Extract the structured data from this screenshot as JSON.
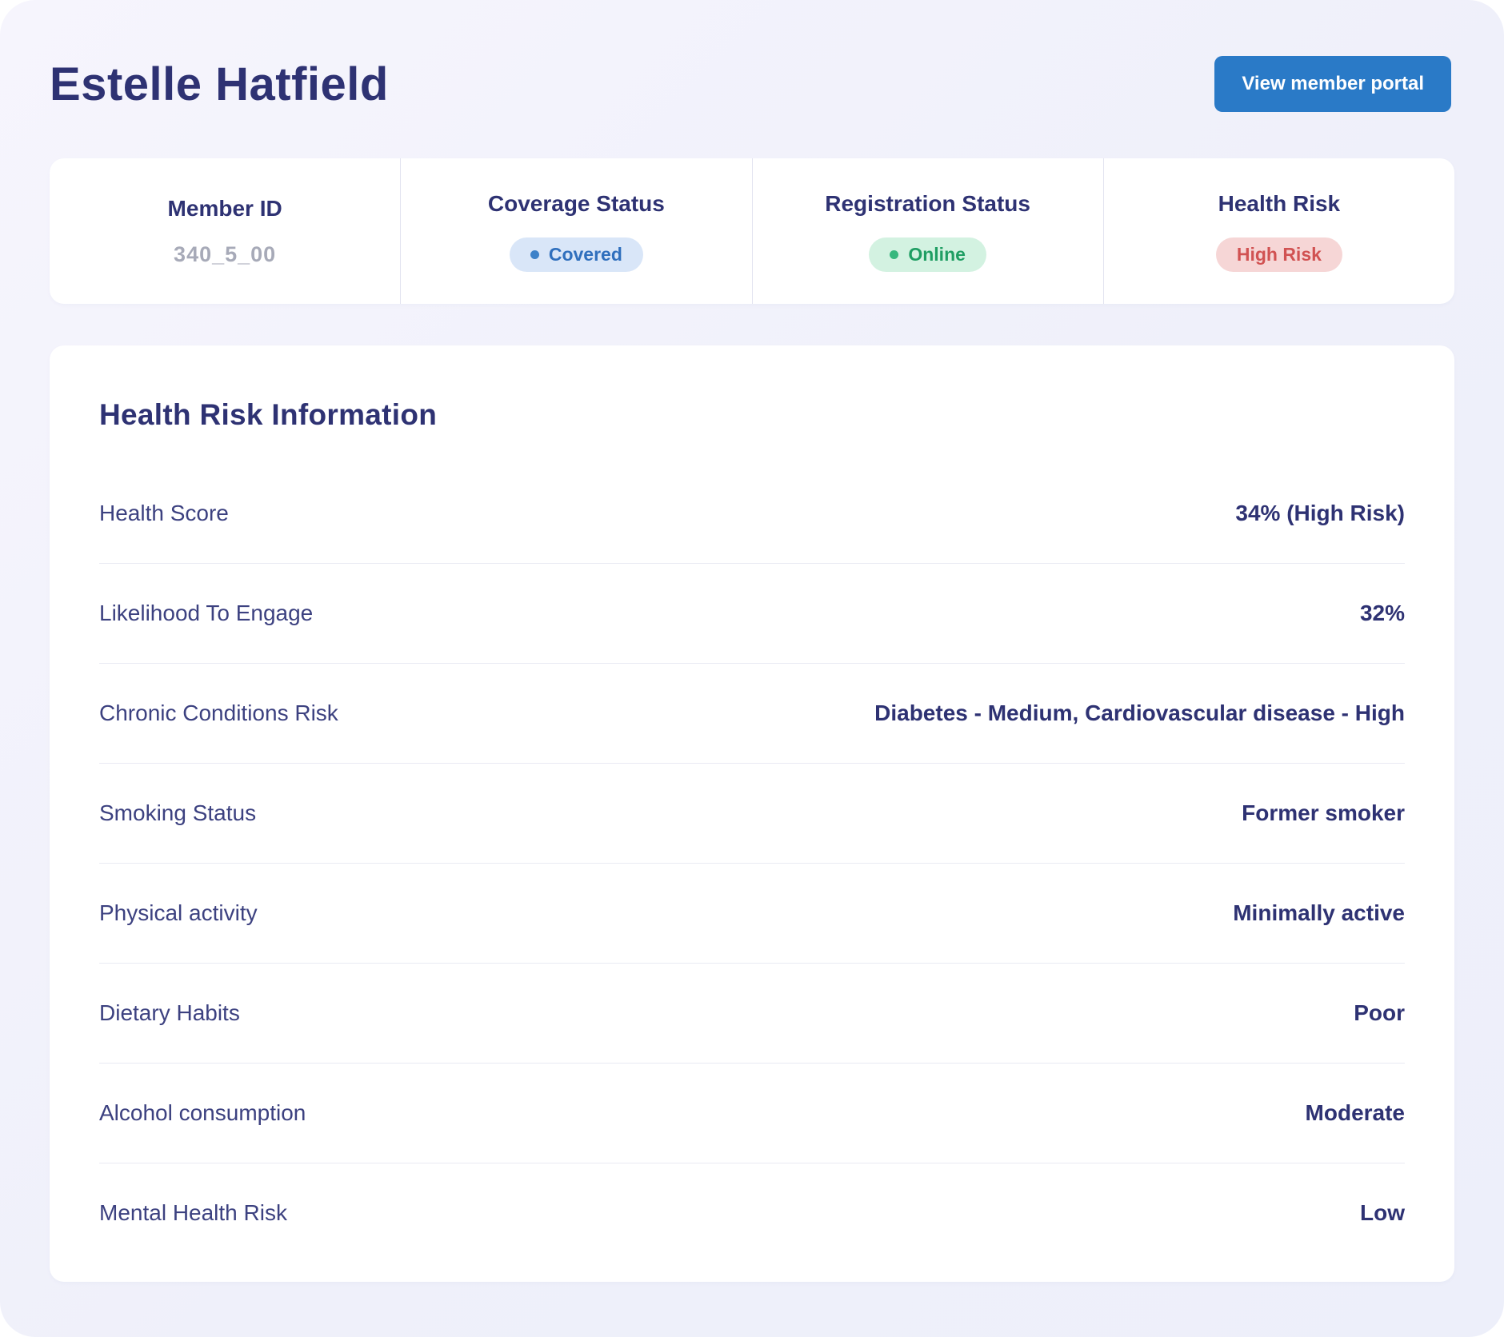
{
  "header": {
    "title": "Estelle Hatfield",
    "portal_button_label": "View member portal"
  },
  "stats": {
    "member_id": {
      "label": "Member ID",
      "value": "340_5_00"
    },
    "coverage": {
      "label": "Coverage Status",
      "badge": "Covered"
    },
    "registration": {
      "label": "Registration Status",
      "badge": "Online"
    },
    "health_risk": {
      "label": "Health Risk",
      "badge": "High Risk"
    }
  },
  "info": {
    "title": "Health Risk Information",
    "rows": [
      {
        "label": "Health Score",
        "value": "34% (High Risk)"
      },
      {
        "label": "Likelihood To Engage",
        "value": "32%"
      },
      {
        "label": "Chronic Conditions Risk",
        "value": "Diabetes - Medium, Cardiovascular disease - High"
      },
      {
        "label": "Smoking Status",
        "value": "Former smoker"
      },
      {
        "label": "Physical activity",
        "value": "Minimally active"
      },
      {
        "label": "Dietary Habits",
        "value": "Poor"
      },
      {
        "label": "Alcohol consumption",
        "value": "Moderate"
      },
      {
        "label": "Mental Health Risk",
        "value": "Low"
      }
    ]
  },
  "colors": {
    "page_background": "#eff0fa",
    "heading_navy": "#2e3273",
    "button_blue": "#2a7ac7",
    "badge_covered_bg": "#d9e6f8",
    "badge_covered_text": "#2f6fbd",
    "badge_online_bg": "#d3f2e1",
    "badge_online_text": "#1f9e63",
    "badge_high_risk_bg": "#f6d6d6",
    "badge_high_risk_text": "#d15252",
    "muted_value_gray": "#a7aab8"
  }
}
